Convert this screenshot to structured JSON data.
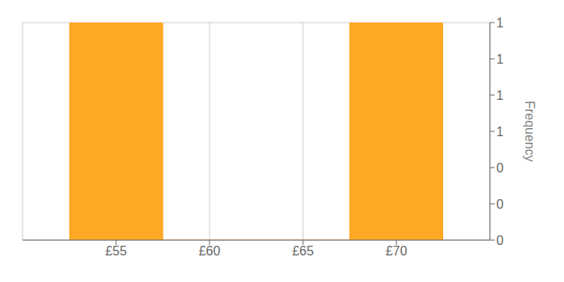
{
  "chart_data": {
    "type": "histogram",
    "bins": [
      52.5,
      57.5,
      67.5,
      72.5
    ],
    "values": [
      1,
      0,
      1
    ],
    "color": "#FFA826",
    "ylabel": "Frequency",
    "xlim": [
      50,
      75
    ],
    "xticks": [
      {
        "value": 55,
        "label": "£55"
      },
      {
        "value": 60,
        "label": "£60"
      },
      {
        "value": 65,
        "label": "£65"
      },
      {
        "value": 70,
        "label": "£70"
      }
    ],
    "ylim": [
      0,
      1.0
    ],
    "yticks": [
      0,
      {
        "value": 0.1667,
        "label": "0"
      },
      {
        "value": 0.3333,
        "label": "0"
      },
      {
        "value": 0.5,
        "label": "1"
      },
      {
        "value": 0.6667,
        "label": "1"
      },
      {
        "value": 0.8333,
        "label": "1"
      },
      1
    ],
    "grid": true
  }
}
